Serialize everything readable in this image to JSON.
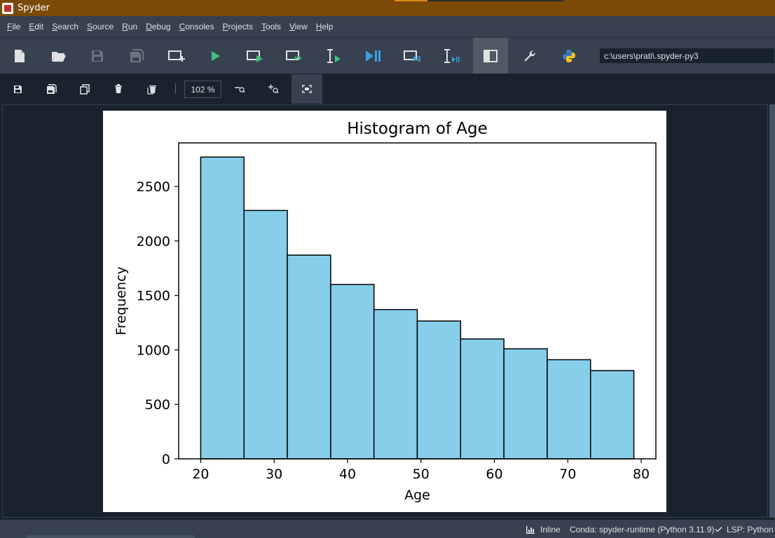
{
  "window": {
    "title": "Spyder"
  },
  "menu": [
    {
      "label": "File",
      "name": "menu-file"
    },
    {
      "label": "Edit",
      "name": "menu-edit"
    },
    {
      "label": "Search",
      "name": "menu-search"
    },
    {
      "label": "Source",
      "name": "menu-source"
    },
    {
      "label": "Run",
      "name": "menu-run"
    },
    {
      "label": "Debug",
      "name": "menu-debug"
    },
    {
      "label": "Consoles",
      "name": "menu-consoles"
    },
    {
      "label": "Projects",
      "name": "menu-projects"
    },
    {
      "label": "Tools",
      "name": "menu-tools"
    },
    {
      "label": "View",
      "name": "menu-view"
    },
    {
      "label": "Help",
      "name": "menu-help"
    }
  ],
  "toolbar": {
    "path": "c:\\users\\prati\\.spyder-py3"
  },
  "plots_toolbar": {
    "zoom": "102 %"
  },
  "status": {
    "inline": "Inline",
    "conda": "Conda: spyder-runtime (Python 3.11.9)",
    "lsp": "LSP: Python"
  },
  "colors": {
    "bar_fill": "#87ceeb",
    "accent_green": "#3fc380",
    "accent_blue": "#3c9fe0"
  },
  "chart_data": {
    "type": "bar",
    "title": "Histogram of Age",
    "xlabel": "Age",
    "ylabel": "Frequency",
    "bin_edges": [
      20,
      25.9,
      31.8,
      37.7,
      43.6,
      49.5,
      55.4,
      61.3,
      67.2,
      73.1,
      79
    ],
    "values": [
      2770,
      2280,
      1870,
      1600,
      1370,
      1265,
      1100,
      1010,
      910,
      810
    ],
    "xlim": [
      17,
      82
    ],
    "ylim": [
      0,
      2900
    ],
    "xticks": [
      20,
      30,
      40,
      50,
      60,
      70,
      80
    ],
    "yticks": [
      0,
      500,
      1000,
      1500,
      2000,
      2500
    ],
    "grid": false
  }
}
